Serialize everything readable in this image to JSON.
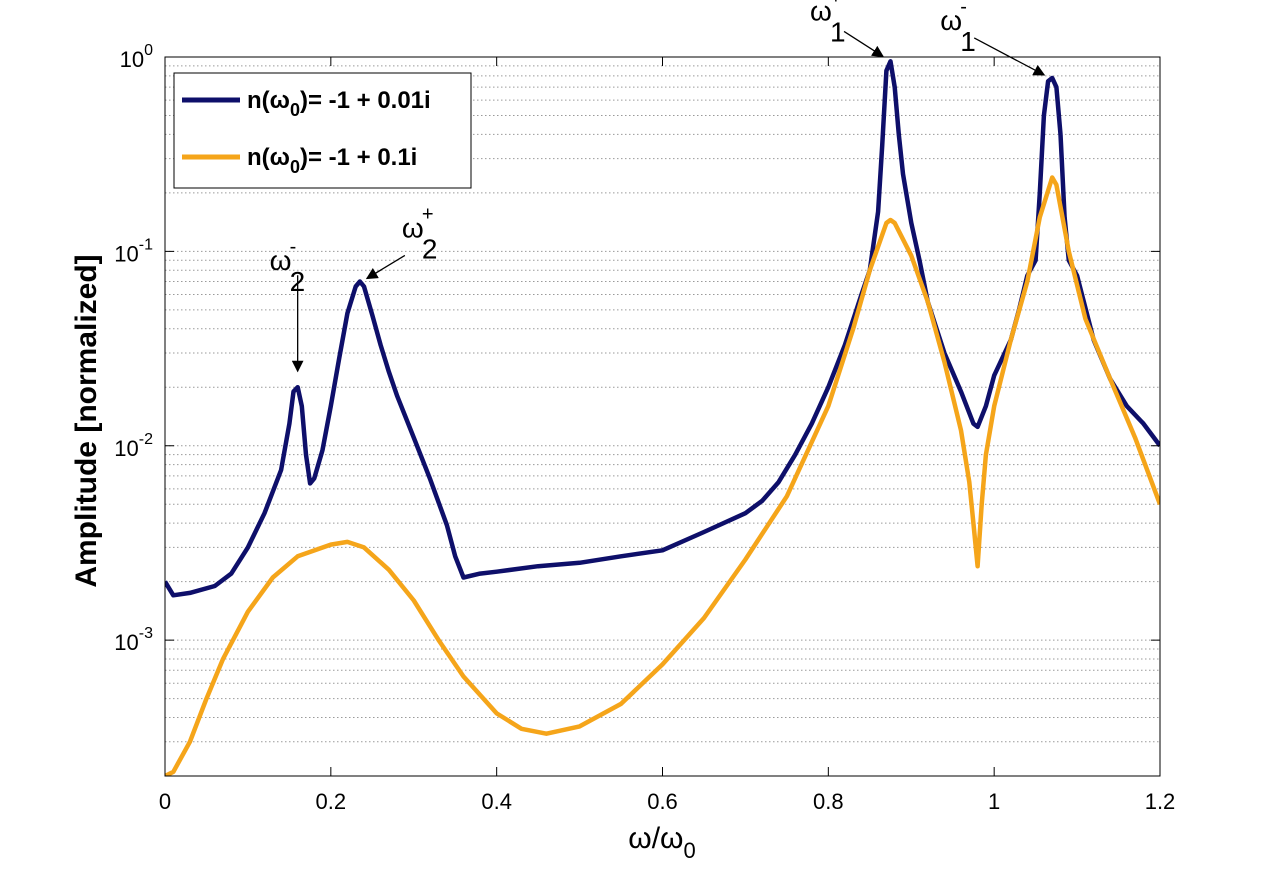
{
  "chart_data": {
    "type": "line",
    "xlabel": {
      "base": "ω/ω",
      "sub": "0"
    },
    "ylabel": "Amplitude [normalized]",
    "xlim": [
      0,
      1.2
    ],
    "ylim": [
      0.0002,
      1.0
    ],
    "yscale": "log",
    "grid": "y-major-and-minor-dotted",
    "legend_position": "top-left",
    "x_ticks": [
      "0",
      "0.2",
      "0.4",
      "0.6",
      "0.8",
      "1",
      "1.2"
    ],
    "x_tick_values": [
      0,
      0.2,
      0.4,
      0.6,
      0.8,
      1.0,
      1.2
    ],
    "y_ticks": [
      {
        "value": 1.0,
        "base": "10",
        "exp": "0"
      },
      {
        "value": 0.1,
        "base": "10",
        "exp": "-1"
      },
      {
        "value": 0.01,
        "base": "10",
        "exp": "-2"
      },
      {
        "value": 0.001,
        "base": "10",
        "exp": "-3"
      }
    ],
    "series": [
      {
        "name": "n(ω0)= -1 + 0.01i",
        "legend": {
          "pre": "n(ω",
          "sub": "0",
          "post": ")= -1 + 0.01i"
        },
        "color": "#0e0f6a",
        "points": [
          [
            0.0,
            0.002
          ],
          [
            0.01,
            0.0017
          ],
          [
            0.03,
            0.00175
          ],
          [
            0.06,
            0.0019
          ],
          [
            0.08,
            0.0022
          ],
          [
            0.1,
            0.003
          ],
          [
            0.12,
            0.0045
          ],
          [
            0.14,
            0.0075
          ],
          [
            0.15,
            0.013
          ],
          [
            0.155,
            0.019
          ],
          [
            0.16,
            0.02
          ],
          [
            0.165,
            0.016
          ],
          [
            0.17,
            0.009
          ],
          [
            0.175,
            0.0064
          ],
          [
            0.18,
            0.0068
          ],
          [
            0.19,
            0.0095
          ],
          [
            0.2,
            0.016
          ],
          [
            0.21,
            0.028
          ],
          [
            0.22,
            0.048
          ],
          [
            0.23,
            0.066
          ],
          [
            0.235,
            0.07
          ],
          [
            0.24,
            0.066
          ],
          [
            0.25,
            0.047
          ],
          [
            0.26,
            0.033
          ],
          [
            0.27,
            0.024
          ],
          [
            0.28,
            0.018
          ],
          [
            0.3,
            0.011
          ],
          [
            0.32,
            0.0067
          ],
          [
            0.34,
            0.0039
          ],
          [
            0.35,
            0.0027
          ],
          [
            0.36,
            0.0021
          ],
          [
            0.38,
            0.0022
          ],
          [
            0.4,
            0.00225
          ],
          [
            0.45,
            0.0024
          ],
          [
            0.5,
            0.0025
          ],
          [
            0.55,
            0.0027
          ],
          [
            0.6,
            0.0029
          ],
          [
            0.65,
            0.0036
          ],
          [
            0.7,
            0.0045
          ],
          [
            0.72,
            0.0052
          ],
          [
            0.74,
            0.0065
          ],
          [
            0.76,
            0.009
          ],
          [
            0.78,
            0.013
          ],
          [
            0.8,
            0.02
          ],
          [
            0.82,
            0.033
          ],
          [
            0.84,
            0.06
          ],
          [
            0.85,
            0.08
          ],
          [
            0.86,
            0.16
          ],
          [
            0.865,
            0.35
          ],
          [
            0.87,
            0.85
          ],
          [
            0.875,
            0.95
          ],
          [
            0.88,
            0.7
          ],
          [
            0.885,
            0.4
          ],
          [
            0.89,
            0.25
          ],
          [
            0.9,
            0.14
          ],
          [
            0.91,
            0.09
          ],
          [
            0.92,
            0.055
          ],
          [
            0.94,
            0.03
          ],
          [
            0.96,
            0.019
          ],
          [
            0.975,
            0.013
          ],
          [
            0.98,
            0.0125
          ],
          [
            0.99,
            0.016
          ],
          [
            1.0,
            0.023
          ],
          [
            1.02,
            0.035
          ],
          [
            1.03,
            0.05
          ],
          [
            1.04,
            0.075
          ],
          [
            1.05,
            0.09
          ],
          [
            1.055,
            0.2
          ],
          [
            1.06,
            0.5
          ],
          [
            1.065,
            0.75
          ],
          [
            1.07,
            0.78
          ],
          [
            1.075,
            0.7
          ],
          [
            1.08,
            0.4
          ],
          [
            1.085,
            0.15
          ],
          [
            1.09,
            0.09
          ],
          [
            1.1,
            0.075
          ],
          [
            1.12,
            0.035
          ],
          [
            1.14,
            0.022
          ],
          [
            1.16,
            0.016
          ],
          [
            1.18,
            0.013
          ],
          [
            1.2,
            0.01
          ]
        ]
      },
      {
        "name": "n(ω0)= -1 + 0.1i",
        "legend": {
          "pre": "n(ω",
          "sub": "0",
          "post": ")= -1 + 0.1i"
        },
        "color": "#f5a51a",
        "points": [
          [
            0.0,
            0.0002
          ],
          [
            0.01,
            0.00021
          ],
          [
            0.03,
            0.0003
          ],
          [
            0.05,
            0.0005
          ],
          [
            0.07,
            0.0008
          ],
          [
            0.1,
            0.0014
          ],
          [
            0.13,
            0.0021
          ],
          [
            0.16,
            0.0027
          ],
          [
            0.2,
            0.0031
          ],
          [
            0.22,
            0.0032
          ],
          [
            0.24,
            0.003
          ],
          [
            0.27,
            0.0023
          ],
          [
            0.3,
            0.0016
          ],
          [
            0.33,
            0.001
          ],
          [
            0.36,
            0.00065
          ],
          [
            0.4,
            0.00042
          ],
          [
            0.43,
            0.00035
          ],
          [
            0.46,
            0.00033
          ],
          [
            0.5,
            0.00036
          ],
          [
            0.55,
            0.00047
          ],
          [
            0.6,
            0.00075
          ],
          [
            0.65,
            0.0013
          ],
          [
            0.7,
            0.0026
          ],
          [
            0.75,
            0.0055
          ],
          [
            0.8,
            0.016
          ],
          [
            0.83,
            0.04
          ],
          [
            0.85,
            0.08
          ],
          [
            0.87,
            0.14
          ],
          [
            0.875,
            0.145
          ],
          [
            0.88,
            0.14
          ],
          [
            0.9,
            0.095
          ],
          [
            0.92,
            0.055
          ],
          [
            0.94,
            0.027
          ],
          [
            0.96,
            0.012
          ],
          [
            0.97,
            0.0065
          ],
          [
            0.975,
            0.004
          ],
          [
            0.98,
            0.0024
          ],
          [
            0.985,
            0.005
          ],
          [
            0.99,
            0.009
          ],
          [
            1.0,
            0.016
          ],
          [
            1.02,
            0.035
          ],
          [
            1.04,
            0.07
          ],
          [
            1.055,
            0.15
          ],
          [
            1.07,
            0.24
          ],
          [
            1.075,
            0.22
          ],
          [
            1.09,
            0.1
          ],
          [
            1.11,
            0.045
          ],
          [
            1.14,
            0.022
          ],
          [
            1.17,
            0.011
          ],
          [
            1.2,
            0.005
          ]
        ]
      }
    ],
    "annotations": [
      {
        "base": "ω",
        "sup": "-",
        "sub": "2",
        "x": 0.16,
        "y": 0.02
      },
      {
        "base": "ω",
        "sup": "+",
        "sub": "2",
        "x": 0.235,
        "y": 0.07
      },
      {
        "base": "ω",
        "sup": "+",
        "sub": "1",
        "x": 0.872,
        "y": 0.96
      },
      {
        "base": "ω",
        "sup": "-",
        "sub": "1",
        "x": 1.07,
        "y": 0.78
      }
    ]
  }
}
